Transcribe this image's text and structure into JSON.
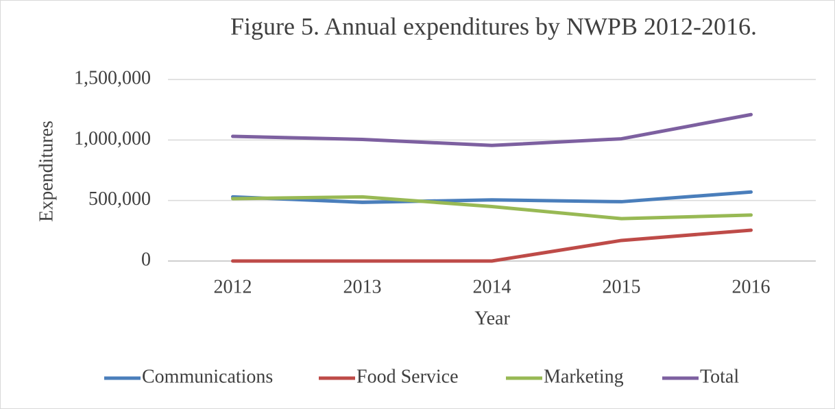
{
  "chart_data": {
    "type": "line",
    "title": "Figure 5.  Annual expenditures by NWPB 2012-2016.",
    "x_label": "Year",
    "y_label": "Expenditures",
    "categories": [
      "2012",
      "2013",
      "2014",
      "2015",
      "2016"
    ],
    "series": [
      {
        "name": "Communications",
        "color": "#4a7ebb",
        "values": [
          530000,
          485000,
          505000,
          490000,
          570000
        ]
      },
      {
        "name": "Food Service",
        "color": "#be4b48",
        "values": [
          0,
          0,
          0,
          170000,
          255000
        ]
      },
      {
        "name": "Marketing",
        "color": "#98b954",
        "values": [
          515000,
          530000,
          450000,
          350000,
          380000
        ]
      },
      {
        "name": "Total",
        "color": "#7d60a0",
        "values": [
          1030000,
          1005000,
          955000,
          1010000,
          1210000
        ]
      }
    ],
    "ylim": [
      0,
      1500000
    ],
    "yticks": [
      0,
      {
        "value": 500000,
        "label": "500,000"
      },
      {
        "value": 1000000,
        "label": "1,000,000"
      },
      {
        "value": 1500000,
        "label": "1,500,000"
      }
    ],
    "grid": true,
    "legend": "bottom"
  }
}
